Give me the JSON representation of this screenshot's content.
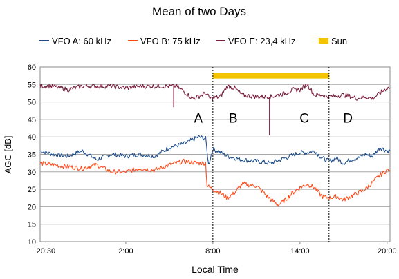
{
  "chart_data": {
    "type": "line",
    "title": "Mean of two Days",
    "xlabel": "Local Time",
    "ylabel": "AGC [dB]",
    "ylim": [
      10,
      60
    ],
    "yticks": [
      10,
      15,
      20,
      25,
      30,
      35,
      40,
      45,
      50,
      55,
      60
    ],
    "xlim_hours": [
      20.1,
      44.2
    ],
    "xticks": [
      {
        "label": "20:30",
        "hour": 20.5
      },
      {
        "label": "2:00",
        "hour": 26.0
      },
      {
        "label": "8:00",
        "hour": 32.0
      },
      {
        "label": "14:00",
        "hour": 38.0
      },
      {
        "label": "20:00",
        "hour": 44.0
      }
    ],
    "grid": "horizontal",
    "legend_position": "top",
    "legend": [
      {
        "label": "VFO A: 60 kHz",
        "color": "#1f4e8c",
        "shape": "line"
      },
      {
        "label": "VFO B: 75 kHz",
        "color": "#ff4a1a",
        "shape": "line"
      },
      {
        "label": "VFO E: 23,4 kHz",
        "color": "#7a1f3d",
        "shape": "line"
      },
      {
        "label": "Sun",
        "color": "#f5c400",
        "shape": "thick"
      }
    ],
    "series": [
      {
        "name": "VFO A: 60 kHz",
        "color": "#1f4e8c",
        "x": [
          20.1,
          21,
          22,
          23,
          24,
          25,
          26,
          27,
          28,
          29,
          30,
          31,
          31.5,
          31.7,
          32,
          32.3,
          33,
          34,
          35,
          36,
          37,
          38,
          38.5,
          39,
          39.5,
          40,
          40.5,
          41,
          41.5,
          42,
          42.5,
          43,
          43.5,
          44,
          44.2
        ],
        "y": [
          36,
          35,
          34.5,
          36,
          33.5,
          35,
          34.5,
          35,
          34.5,
          37,
          38,
          40,
          39.5,
          32,
          36.5,
          36,
          34.5,
          33.5,
          33,
          32.5,
          34,
          35.5,
          35.5,
          36,
          34,
          33,
          34,
          32.5,
          33.5,
          34,
          35,
          34.5,
          37,
          36,
          36
        ]
      },
      {
        "name": "VFO B: 75 kHz",
        "color": "#ff4a1a",
        "x": [
          20.1,
          21,
          22,
          23,
          24,
          25,
          26,
          27,
          28,
          29,
          30,
          31,
          31.5,
          31.6,
          32,
          32.5,
          33,
          33.5,
          34,
          35,
          36,
          36.5,
          37,
          37.5,
          38,
          38.5,
          39,
          39.5,
          40,
          40.5,
          41,
          41.5,
          42,
          42.5,
          43,
          43.5,
          44,
          44.2
        ],
        "y": [
          32.5,
          32,
          31.5,
          31,
          32,
          30,
          30,
          31,
          30.5,
          32,
          33,
          32.5,
          32.5,
          26,
          25,
          24,
          22.5,
          24,
          26.5,
          26,
          22,
          20.5,
          22,
          24,
          25.5,
          26.5,
          25.5,
          23,
          22.5,
          23,
          22,
          23,
          24,
          25,
          27,
          29,
          30.5,
          30.5
        ]
      },
      {
        "name": "VFO E: 23,4 kHz",
        "color": "#7a1f3d",
        "x": [
          20.1,
          21,
          22,
          23,
          24,
          25,
          26,
          27,
          28,
          29,
          29.5,
          30,
          30.3,
          30.6,
          31,
          31.5,
          31.8,
          32.5,
          33,
          33.5,
          34,
          35,
          35.5,
          36,
          36.5,
          37,
          37.5,
          38,
          38.5,
          39,
          39.5,
          40,
          41,
          42,
          42.5,
          43,
          43.5,
          44,
          44.2
        ],
        "y": [
          54.5,
          54.5,
          53.5,
          54.5,
          54.5,
          54.5,
          54,
          54.5,
          54.5,
          54.5,
          54.5,
          53,
          52,
          51,
          51.5,
          52.5,
          51,
          51.5,
          54.5,
          54,
          52,
          51.5,
          51.5,
          51.5,
          52,
          52.5,
          53.5,
          53.5,
          55,
          52,
          52,
          51.5,
          52,
          51,
          51.5,
          51,
          52.5,
          54,
          54
        ]
      }
    ],
    "spikes": [
      {
        "series": "VFO E: 23,4 kHz",
        "x": 29.3,
        "y": 48.5
      },
      {
        "series": "VFO E: 23,4 kHz",
        "x": 35.9,
        "y": 40.5
      }
    ],
    "sun_bar": {
      "label": "Sun",
      "x_start": 32.0,
      "x_end": 40.0,
      "y": 57.5,
      "color": "#f5c400"
    },
    "markers": [
      {
        "x": 32.0
      },
      {
        "x": 40.0
      }
    ],
    "annotations": [
      {
        "text": "A",
        "x": 31.0,
        "y": 45.5
      },
      {
        "text": "B",
        "x": 33.4,
        "y": 45.5
      },
      {
        "text": "C",
        "x": 38.3,
        "y": 45.5
      },
      {
        "text": "D",
        "x": 41.3,
        "y": 45.5
      }
    ]
  }
}
